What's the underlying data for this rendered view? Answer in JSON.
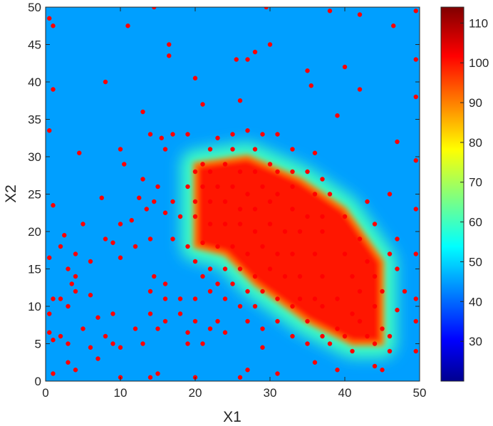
{
  "chart_data": {
    "type": "heatmap",
    "title": "",
    "xlabel": "X1",
    "ylabel": "X2",
    "xlim": [
      0,
      50
    ],
    "ylim": [
      0,
      50
    ],
    "xticks": [
      "0",
      "10",
      "20",
      "30",
      "40",
      "50"
    ],
    "yticks": [
      "0",
      "5",
      "10",
      "15",
      "20",
      "25",
      "30",
      "35",
      "40",
      "45",
      "50"
    ],
    "colormap": "jet",
    "colorbar": {
      "range": [
        20,
        114
      ],
      "ticks": [
        "30",
        "40",
        "50",
        "60",
        "70",
        "80",
        "90",
        "100",
        "110"
      ]
    },
    "background_level": 45,
    "high_region": {
      "level": 100,
      "polygon": [
        [
          20,
          29
        ],
        [
          27,
          30
        ],
        [
          34,
          27
        ],
        [
          40,
          23
        ],
        [
          45,
          16
        ],
        [
          45,
          5
        ],
        [
          41,
          5
        ],
        [
          35,
          8
        ],
        [
          28,
          13
        ],
        [
          24,
          17
        ],
        [
          20,
          18
        ]
      ]
    },
    "scatter_color": "#ff0000",
    "scatter_points": [
      [
        0.5,
        48.5
      ],
      [
        1,
        47.5
      ],
      [
        14.5,
        50
      ],
      [
        29.5,
        50
      ],
      [
        38,
        49.5
      ],
      [
        42,
        49
      ],
      [
        49.5,
        49.5
      ],
      [
        11,
        47.5
      ],
      [
        16.5,
        45
      ],
      [
        28,
        44
      ],
      [
        27,
        43
      ],
      [
        30,
        45
      ],
      [
        46.5,
        47.5
      ],
      [
        16.5,
        43.5
      ],
      [
        25.5,
        43
      ],
      [
        40,
        42
      ],
      [
        49.5,
        43
      ],
      [
        35,
        41.5
      ],
      [
        20,
        40.5
      ],
      [
        8,
        40
      ],
      [
        1,
        39
      ],
      [
        35.5,
        39.5
      ],
      [
        42,
        39
      ],
      [
        49.5,
        38
      ],
      [
        26,
        37.5
      ],
      [
        21,
        37
      ],
      [
        13,
        36
      ],
      [
        39,
        35.5
      ],
      [
        0.5,
        33.5
      ],
      [
        14,
        33
      ],
      [
        15.5,
        32.5
      ],
      [
        17,
        33
      ],
      [
        19,
        33
      ],
      [
        23,
        32.5
      ],
      [
        25,
        33
      ],
      [
        27,
        33.5
      ],
      [
        29,
        33
      ],
      [
        31,
        33
      ],
      [
        47,
        32
      ],
      [
        10,
        31
      ],
      [
        16,
        31
      ],
      [
        22,
        31
      ],
      [
        25,
        31
      ],
      [
        28,
        31
      ],
      [
        33,
        31
      ],
      [
        36,
        30.5
      ],
      [
        4.5,
        30.5
      ],
      [
        49.5,
        29.5
      ],
      [
        10.5,
        29
      ],
      [
        20,
        28
      ],
      [
        21,
        29
      ],
      [
        22,
        28
      ],
      [
        24,
        29
      ],
      [
        26,
        28
      ],
      [
        28,
        28
      ],
      [
        30,
        29
      ],
      [
        31,
        28
      ],
      [
        33,
        28
      ],
      [
        35,
        28
      ],
      [
        37,
        27
      ],
      [
        13,
        27
      ],
      [
        15,
        26
      ],
      [
        19,
        26
      ],
      [
        21,
        26
      ],
      [
        23,
        26
      ],
      [
        25,
        26
      ],
      [
        27,
        25
      ],
      [
        29,
        26
      ],
      [
        31,
        25
      ],
      [
        33,
        26
      ],
      [
        36,
        25
      ],
      [
        38,
        25
      ],
      [
        43,
        24
      ],
      [
        46,
        25
      ],
      [
        12.5,
        24.5
      ],
      [
        7.5,
        24.5
      ],
      [
        14.5,
        24
      ],
      [
        17,
        24
      ],
      [
        20,
        24
      ],
      [
        22,
        24
      ],
      [
        24,
        24
      ],
      [
        26,
        23
      ],
      [
        28,
        23
      ],
      [
        30,
        24
      ],
      [
        33,
        23
      ],
      [
        35,
        22
      ],
      [
        37,
        22
      ],
      [
        40,
        22
      ],
      [
        44,
        21
      ],
      [
        49.5,
        23
      ],
      [
        13.5,
        23
      ],
      [
        1,
        23.5
      ],
      [
        16,
        22.5
      ],
      [
        18,
        22
      ],
      [
        20,
        22
      ],
      [
        22,
        21
      ],
      [
        24,
        21
      ],
      [
        26,
        21
      ],
      [
        28,
        20
      ],
      [
        30,
        21
      ],
      [
        32,
        20
      ],
      [
        34,
        20
      ],
      [
        37,
        20
      ],
      [
        42,
        19
      ],
      [
        47,
        19
      ],
      [
        10,
        21
      ],
      [
        11.5,
        21.5
      ],
      [
        5,
        21
      ],
      [
        2.5,
        19.5
      ],
      [
        8,
        19
      ],
      [
        9,
        18.5
      ],
      [
        12,
        18
      ],
      [
        14,
        19
      ],
      [
        17,
        19
      ],
      [
        19,
        18
      ],
      [
        21,
        18.5
      ],
      [
        23,
        18
      ],
      [
        25,
        18
      ],
      [
        27,
        17
      ],
      [
        29,
        18
      ],
      [
        31,
        17
      ],
      [
        33,
        17
      ],
      [
        36,
        17
      ],
      [
        40,
        17
      ],
      [
        43,
        16
      ],
      [
        46,
        17
      ],
      [
        49.5,
        17
      ],
      [
        2,
        18
      ],
      [
        4,
        17
      ],
      [
        6,
        16
      ],
      [
        10,
        16.5
      ],
      [
        0.5,
        16.5
      ],
      [
        20,
        16
      ],
      [
        22,
        15
      ],
      [
        24,
        15
      ],
      [
        26,
        15
      ],
      [
        28,
        14
      ],
      [
        30,
        15
      ],
      [
        32,
        14
      ],
      [
        34,
        14
      ],
      [
        37,
        14
      ],
      [
        41,
        14
      ],
      [
        44,
        14
      ],
      [
        47,
        15
      ],
      [
        3,
        15
      ],
      [
        4,
        14
      ],
      [
        3.5,
        13
      ],
      [
        14.5,
        14
      ],
      [
        16,
        13
      ],
      [
        21,
        14
      ],
      [
        23,
        13
      ],
      [
        25,
        13
      ],
      [
        27,
        12
      ],
      [
        29,
        12
      ],
      [
        31,
        11
      ],
      [
        34,
        11
      ],
      [
        36,
        11
      ],
      [
        39,
        11
      ],
      [
        42,
        12
      ],
      [
        45,
        12
      ],
      [
        48,
        12
      ],
      [
        49.5,
        11
      ],
      [
        1,
        11
      ],
      [
        2,
        11
      ],
      [
        4,
        12
      ],
      [
        6,
        11.5
      ],
      [
        14,
        12
      ],
      [
        16,
        11
      ],
      [
        18,
        11
      ],
      [
        20,
        11
      ],
      [
        22,
        12
      ],
      [
        24,
        11
      ],
      [
        26,
        10
      ],
      [
        28,
        10
      ],
      [
        33,
        10
      ],
      [
        37,
        10
      ],
      [
        41,
        9
      ],
      [
        44,
        10
      ],
      [
        47,
        9.5
      ],
      [
        0.5,
        9
      ],
      [
        3,
        10
      ],
      [
        7,
        8.5
      ],
      [
        9,
        9
      ],
      [
        14,
        9
      ],
      [
        16,
        8
      ],
      [
        18,
        9
      ],
      [
        20,
        8
      ],
      [
        23,
        8
      ],
      [
        27,
        8
      ],
      [
        31,
        8
      ],
      [
        35,
        8
      ],
      [
        39,
        7
      ],
      [
        42,
        8
      ],
      [
        45,
        7
      ],
      [
        49.5,
        8
      ],
      [
        0.5,
        6.5
      ],
      [
        2,
        6
      ],
      [
        5,
        7
      ],
      [
        8,
        6
      ],
      [
        12,
        7
      ],
      [
        15,
        7
      ],
      [
        19,
        6.5
      ],
      [
        22,
        7
      ],
      [
        24,
        6.5
      ],
      [
        29,
        7
      ],
      [
        33,
        6
      ],
      [
        37,
        6
      ],
      [
        40,
        6
      ],
      [
        43,
        6
      ],
      [
        46,
        6
      ],
      [
        1,
        5.5
      ],
      [
        3,
        5
      ],
      [
        6,
        4.5
      ],
      [
        9,
        5
      ],
      [
        10,
        4.5
      ],
      [
        13,
        5
      ],
      [
        19,
        5
      ],
      [
        21,
        5
      ],
      [
        29,
        4.5
      ],
      [
        35,
        5
      ],
      [
        38,
        5
      ],
      [
        41,
        4
      ],
      [
        44,
        5
      ],
      [
        46,
        4
      ],
      [
        49.5,
        4
      ],
      [
        1,
        1
      ],
      [
        3,
        2.5
      ],
      [
        4,
        1.5
      ],
      [
        7,
        3
      ],
      [
        10,
        0.5
      ],
      [
        14,
        0.5
      ],
      [
        15,
        1
      ],
      [
        20,
        0.5
      ],
      [
        26,
        0.5
      ],
      [
        27,
        1.5
      ],
      [
        31,
        1
      ],
      [
        36,
        2.5
      ],
      [
        39,
        1.5
      ],
      [
        44,
        2
      ],
      [
        45,
        1.5
      ]
    ]
  }
}
